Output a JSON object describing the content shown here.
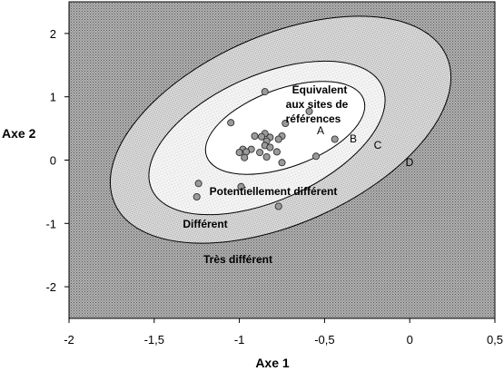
{
  "chart_data": {
    "type": "scatter",
    "xlabel": "Axe 1",
    "ylabel": "Axe 2",
    "xlim": [
      -2,
      0.5
    ],
    "ylim": [
      -2.5,
      2.5
    ],
    "xticks": [
      "-2",
      "-1,5",
      "-1",
      "-0,5",
      "0",
      "0,5"
    ],
    "yticks": [
      "2",
      "1",
      "0",
      "-1",
      "-2"
    ],
    "grid": false,
    "zones": {
      "A": {
        "letter": "A",
        "label_lines": [
          "Équivalent",
          "aux sites de",
          "références"
        ],
        "fill": "#ffffff"
      },
      "B": {
        "letter": "B",
        "label": "Potentiellement différent",
        "fill": "#f2f2f2"
      },
      "C": {
        "letter": "C",
        "label": "Différent",
        "fill": "#d6d6d6"
      },
      "D": {
        "letter": "D",
        "label": "Très différent",
        "fill": "#a9a9a9"
      }
    },
    "points": [
      {
        "x": -0.85,
        "y": 1.08
      },
      {
        "x": -1.05,
        "y": 0.59
      },
      {
        "x": -0.73,
        "y": 0.58
      },
      {
        "x": -0.59,
        "y": 0.77
      },
      {
        "x": -0.44,
        "y": 0.33
      },
      {
        "x": -0.55,
        "y": 0.06
      },
      {
        "x": -0.85,
        "y": 0.42
      },
      {
        "x": -0.87,
        "y": 0.37
      },
      {
        "x": -0.91,
        "y": 0.38
      },
      {
        "x": -0.82,
        "y": 0.36
      },
      {
        "x": -0.84,
        "y": 0.3
      },
      {
        "x": -0.75,
        "y": 0.38
      },
      {
        "x": -0.77,
        "y": 0.33
      },
      {
        "x": -0.85,
        "y": 0.23
      },
      {
        "x": -0.82,
        "y": 0.2
      },
      {
        "x": -0.93,
        "y": 0.17
      },
      {
        "x": -0.98,
        "y": 0.17
      },
      {
        "x": -0.96,
        "y": 0.13
      },
      {
        "x": -1.0,
        "y": 0.12
      },
      {
        "x": -0.88,
        "y": 0.12
      },
      {
        "x": -0.97,
        "y": 0.04
      },
      {
        "x": -0.84,
        "y": 0.05
      },
      {
        "x": -0.78,
        "y": 0.13
      },
      {
        "x": -0.75,
        "y": -0.04
      },
      {
        "x": -1.24,
        "y": -0.37
      },
      {
        "x": -0.99,
        "y": -0.42
      },
      {
        "x": -1.25,
        "y": -0.58
      },
      {
        "x": -0.77,
        "y": -0.73
      }
    ]
  }
}
